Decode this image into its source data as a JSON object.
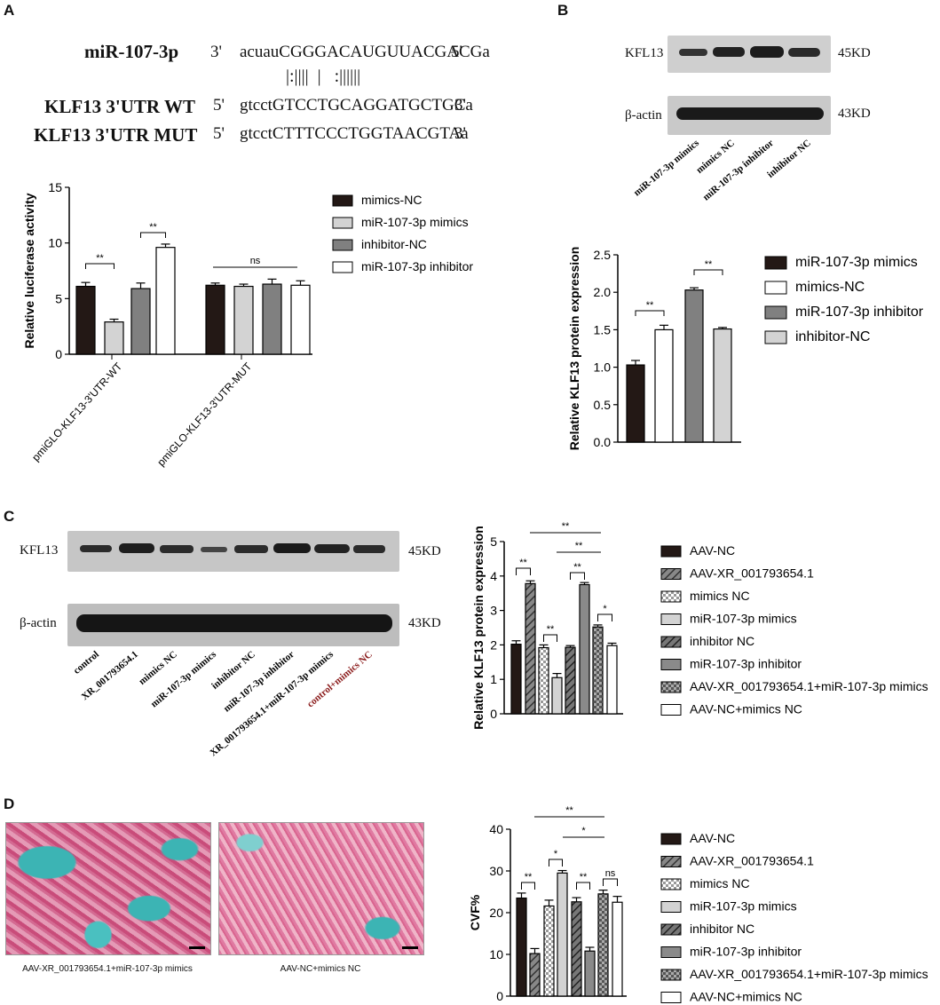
{
  "panels": {
    "a": "A",
    "b": "B",
    "c": "C",
    "d": "D"
  },
  "seqA": {
    "row1": {
      "name": "miR-107-3p",
      "end1": "3'",
      "seq": "acuauCGGGACAUGUUACGACGa",
      "end2": "5'"
    },
    "pairing": "|:||||  |   :||||||",
    "row2": {
      "name": "KLF13 3'UTR WT",
      "end1": "5'",
      "seq": "gtcctGTCCTGCAGGATGCTGCa",
      "end2": "3'"
    },
    "row3": {
      "name": "KLF13 3'UTR MUT",
      "end1": "5'",
      "seq": "gtcctCTTTCCCTGGTAACGTAa",
      "end2": "3'"
    }
  },
  "blotB": {
    "labels": [
      "KFL13",
      "β-actin"
    ],
    "kd": [
      "45KD",
      "43KD"
    ],
    "lanes": [
      "miR-107-3p mimics",
      "mimics NC",
      "miR-107-3p inhibitor",
      "inhibitor NC"
    ]
  },
  "blotC": {
    "labels": [
      "KFL13",
      "β-actin"
    ],
    "kd": [
      "45KD",
      "43KD"
    ],
    "lanes": [
      "control",
      "XR_001793654.1",
      "mimics NC",
      "miR-107-3p mimics",
      "inhibitor NC",
      "miR-107-3p inhibitor",
      "XR_001793654.1+miR-107-3p mimics",
      "control+mimics NC"
    ]
  },
  "imagesD": {
    "captions": [
      "AAV-XR_001793654.1+miR-107-3p mimics",
      "AAV-NC+mimics NC"
    ]
  },
  "colors": {
    "black": "#231815",
    "lightgray": "#d3d3d3",
    "midgray": "#808080",
    "white": "#ffffff",
    "cyan": "#3cb4b4",
    "pink": "#e08aa8"
  },
  "chart_data": [
    {
      "id": "A",
      "type": "bar",
      "categories": [
        "pmiGLO-KLF13-3'UTR-WT",
        "pmiGLO-KLF13-3'UTR-MUT"
      ],
      "series": [
        {
          "name": "mimics-NC",
          "values": [
            6.1,
            6.2
          ],
          "errors": [
            0.35,
            0.2
          ],
          "color": "#231815"
        },
        {
          "name": "miR-107-3p mimics",
          "values": [
            2.9,
            6.1
          ],
          "errors": [
            0.25,
            0.2
          ],
          "color": "#d3d3d3"
        },
        {
          "name": "inhibitor-NC",
          "values": [
            5.9,
            6.3
          ],
          "errors": [
            0.5,
            0.45
          ],
          "color": "#808080"
        },
        {
          "name": "miR-107-3p inhibitor",
          "values": [
            9.6,
            6.2
          ],
          "errors": [
            0.3,
            0.4
          ],
          "color": "#ffffff"
        }
      ],
      "ylabel": "Relative luciferase activity",
      "ylim": [
        0,
        15
      ],
      "yticks": [
        "0",
        "5",
        "10",
        "15"
      ],
      "annotations": [
        "**",
        "**",
        "ns"
      ]
    },
    {
      "id": "B",
      "type": "bar",
      "categories": [
        "miR-107-3p mimics",
        "mimics-NC",
        "miR-107-3p inhibitor",
        "inhibitor-NC"
      ],
      "values": [
        1.03,
        1.5,
        2.03,
        1.51
      ],
      "errors": [
        0.06,
        0.06,
        0.03,
        0.02
      ],
      "ylabel": "Relative KLF13 protein expression",
      "ylim": [
        0,
        2.5
      ],
      "yticks": [
        "0.0",
        "0.5",
        "1.0",
        "1.5",
        "2.0",
        "2.5"
      ],
      "annotations": [
        "**",
        "**"
      ],
      "legend": [
        "miR-107-3p mimics",
        "mimics-NC",
        "miR-107-3p inhibitor",
        "inhibitor-NC"
      ]
    },
    {
      "id": "C",
      "type": "bar",
      "categories": [
        "AAV-NC",
        "AAV-XR_001793654.1",
        "mimics NC",
        "miR-107-3p mimics",
        "inhibitor NC",
        "miR-107-3p inhibitor",
        "AAV-XR_001793654.1+miR-107-3p mimics",
        "AAV-NC+mimics NC"
      ],
      "values": [
        2.02,
        3.78,
        1.92,
        1.05,
        1.93,
        3.75,
        2.52,
        1.98
      ],
      "errors": [
        0.1,
        0.08,
        0.08,
        0.12,
        0.05,
        0.06,
        0.06,
        0.07
      ],
      "ylabel": "Relative KLF13 protein expression",
      "ylim": [
        0,
        5
      ],
      "yticks": [
        "0",
        "1",
        "2",
        "3",
        "4",
        "5"
      ],
      "annotations": [
        "**",
        "**",
        "**",
        "*",
        "**",
        "**"
      ]
    },
    {
      "id": "D",
      "type": "bar",
      "categories": [
        "AAV-NC",
        "AAV-XR_001793654.1",
        "mimics NC",
        "miR-107-3p mimics",
        "inhibitor NC",
        "miR-107-3p inhibitor",
        "AAV-XR_001793654.1+miR-107-3p mimics",
        "AAV-NC+mimics NC"
      ],
      "values": [
        23.5,
        10.2,
        21.6,
        29.5,
        22.6,
        10.8,
        24.5,
        22.5
      ],
      "errors": [
        1.2,
        1.2,
        1.4,
        0.6,
        1.0,
        0.9,
        0.9,
        1.4
      ],
      "ylabel": "CVF%",
      "ylim": [
        0,
        40
      ],
      "yticks": [
        "0",
        "10",
        "20",
        "30",
        "40"
      ],
      "annotations": [
        "**",
        "*",
        "**",
        "ns",
        "**",
        "*"
      ]
    }
  ]
}
